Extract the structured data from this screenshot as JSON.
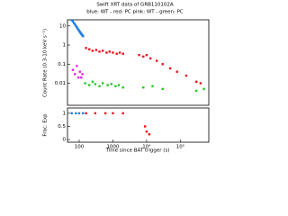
{
  "chart_data": [
    {
      "type": "scatter",
      "title": "Swift XRT data of GRB110102A",
      "subtitle": "blue: WT - red: PC   pink: WT - green: PC",
      "ylabel": "Count Rate (0.3-10 keV s⁻¹)",
      "xlog": true,
      "ylog": true,
      "xlim": [
        45,
        700000
      ],
      "ylim": [
        0.0007,
        21
      ],
      "yticks": [
        10,
        1,
        0.1,
        0.01
      ],
      "series": [
        {
          "name": "WT",
          "color": "#1e7fe0",
          "x": [
            60,
            65,
            70,
            75,
            80,
            85,
            90,
            95,
            100,
            105,
            110,
            115,
            120,
            125,
            130
          ],
          "values": [
            20,
            17,
            14,
            12,
            10,
            8.5,
            7.3,
            6.3,
            5.5,
            4.9,
            4.3,
            3.9,
            3.5,
            3.2,
            2.9
          ]
        },
        {
          "name": "PC",
          "color": "#e8141a",
          "x": [
            160,
            200,
            250,
            320,
            400,
            500,
            650,
            800,
            1000,
            1300,
            1600,
            2000,
            6000,
            8000,
            10000,
            13000,
            20000,
            30000,
            50000,
            80000,
            150000,
            300000,
            400000
          ],
          "values": [
            0.7,
            0.6,
            0.5,
            0.55,
            0.45,
            0.5,
            0.4,
            0.45,
            0.4,
            0.35,
            0.4,
            0.35,
            0.3,
            0.25,
            0.3,
            0.2,
            0.15,
            0.1,
            0.06,
            0.04,
            0.025,
            0.012,
            0.01
          ]
        },
        {
          "name": "WT",
          "color": "#e820e0",
          "x": [
            65,
            75,
            85,
            95,
            105,
            115,
            125
          ],
          "values": [
            0.05,
            0.03,
            0.08,
            0.02,
            0.04,
            0.02,
            0.03
          ]
        },
        {
          "name": "PC",
          "color": "#22cc22",
          "x": [
            150,
            200,
            250,
            300,
            400,
            500,
            700,
            900,
            1200,
            1500,
            2000,
            8000,
            15000,
            30000,
            300000,
            500000
          ],
          "values": [
            0.01,
            0.008,
            0.012,
            0.009,
            0.007,
            0.01,
            0.008,
            0.009,
            0.007,
            0.008,
            0.006,
            0.006,
            0.007,
            0.005,
            0.004,
            0.005
          ]
        }
      ]
    },
    {
      "type": "scatter",
      "ylabel": "Frac. Exp",
      "xlabel": "Time since BAT trigger (s)",
      "xlog": true,
      "xlim": [
        45,
        700000
      ],
      "ylim": [
        -0.1,
        1.2
      ],
      "xticks": [
        100,
        1000,
        {
          "value": 10000,
          "label": "10⁴"
        },
        {
          "value": 100000,
          "label": "10⁵"
        }
      ],
      "yticks": [
        0,
        0.5,
        1
      ],
      "series": [
        {
          "name": "WT",
          "color": "#1e7fe0",
          "x": [
            60,
            80,
            100,
            130
          ],
          "values": [
            1,
            1,
            1,
            1
          ]
        },
        {
          "name": "PC",
          "color": "#e8141a",
          "x": [
            160,
            300,
            600,
            1000,
            2000,
            9000,
            10000,
            12000
          ],
          "values": [
            1,
            1,
            1,
            1,
            1,
            0.5,
            0.3,
            0.2
          ]
        }
      ]
    }
  ]
}
